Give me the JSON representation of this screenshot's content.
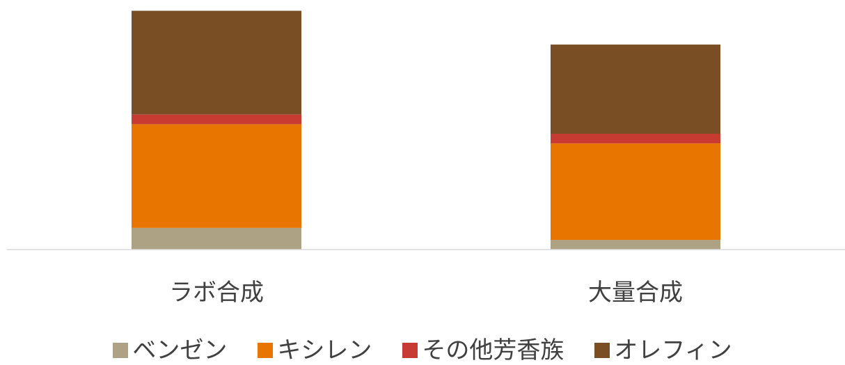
{
  "chart_data": {
    "type": "bar",
    "stacked": true,
    "categories": [
      "ラボ合成",
      "大量合成"
    ],
    "series": [
      {
        "name": "ベンゼン",
        "color": "#ADA284",
        "values": [
          9,
          4
        ]
      },
      {
        "name": "キシレン",
        "color": "#E87500",
        "values": [
          43,
          40
        ]
      },
      {
        "name": "その他芳香族",
        "color": "#C83B32",
        "values": [
          4,
          4
        ]
      },
      {
        "name": "オレフィン",
        "color": "#7A4E24",
        "values": [
          43,
          37
        ]
      }
    ],
    "title": "",
    "xlabel": "",
    "ylabel": "",
    "ylim": [
      0,
      100
    ],
    "grid": false,
    "legend_position": "bottom"
  }
}
